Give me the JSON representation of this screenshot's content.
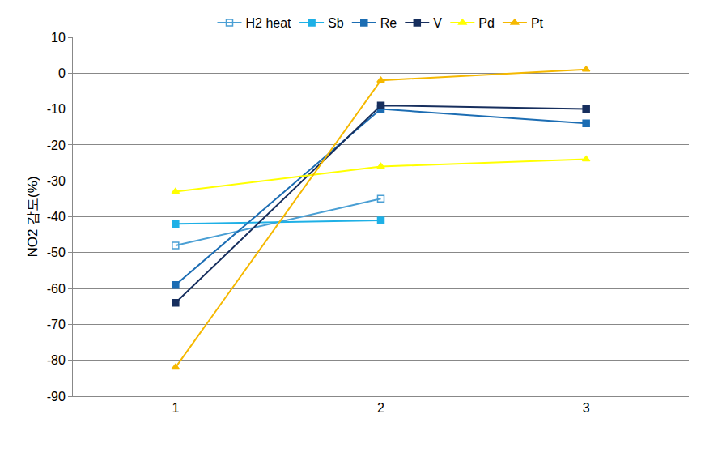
{
  "chart_data": {
    "type": "line",
    "y_label": "NO2 감도(%)",
    "x": [
      1,
      2,
      3
    ],
    "xlim": [
      0.5,
      3.5
    ],
    "xticks": [
      1,
      2,
      3
    ],
    "ylim": [
      -90,
      10
    ],
    "yticks": [
      -90,
      -80,
      -70,
      -60,
      -50,
      -40,
      -30,
      -20,
      -10,
      0,
      10
    ],
    "grid": true,
    "legend": "top",
    "series": [
      {
        "name": "H2 heat",
        "color": "#4a9fd4",
        "marker": "square-open",
        "values": [
          -48,
          -35,
          null
        ]
      },
      {
        "name": "Sb",
        "color": "#1eb0e6",
        "marker": "square",
        "values": [
          -42,
          -41,
          null
        ]
      },
      {
        "name": "Re",
        "color": "#1c6db3",
        "marker": "square",
        "values": [
          -59,
          -10,
          -14
        ]
      },
      {
        "name": "V",
        "color": "#172f5e",
        "marker": "square",
        "values": [
          -64,
          -9,
          -10
        ]
      },
      {
        "name": "Pd",
        "color": "#ffff00",
        "marker": "triangle-up",
        "values": [
          -33,
          -26,
          -24
        ]
      },
      {
        "name": "Pt",
        "color": "#f5b800",
        "marker": "triangle-up",
        "values": [
          -82,
          -2,
          1
        ]
      }
    ]
  }
}
